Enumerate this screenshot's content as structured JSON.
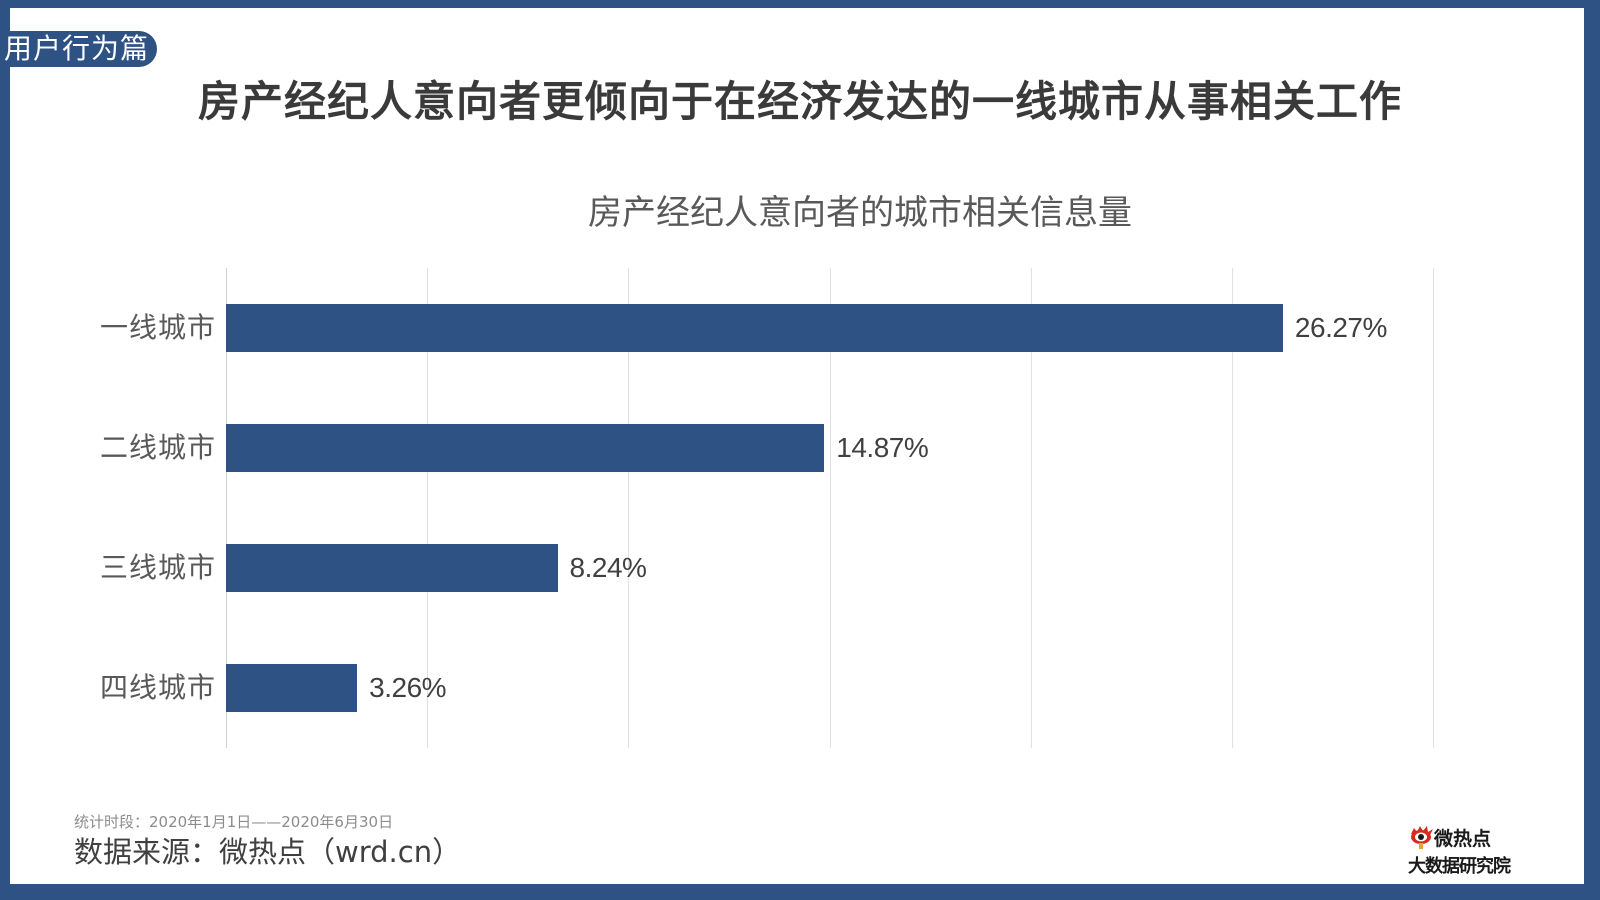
{
  "header": {
    "section_tag": "用户行为篇",
    "headline": "房产经纪人意向者更倾向于在经济发达的一线城市从事相关工作"
  },
  "chart_data": {
    "type": "bar",
    "orientation": "horizontal",
    "title": "房产经纪人意向者的城市相关信息量",
    "categories": [
      "一线城市",
      "二线城市",
      "三线城市",
      "四线城市"
    ],
    "values": [
      26.27,
      14.87,
      8.24,
      3.26
    ],
    "value_labels": [
      "26.27%",
      "14.87%",
      "8.24%",
      "3.26%"
    ],
    "unit": "%",
    "xlabel": "",
    "ylabel": "",
    "xlim": [
      0,
      30
    ],
    "gridlines": [
      0,
      5,
      10,
      15,
      20,
      25,
      30
    ],
    "grid": true,
    "axis_tick_labels_visible": false,
    "legend": null,
    "bar_color": "#2d5283"
  },
  "footer": {
    "period": "统计时段：2020年1月1日——2020年6月30日",
    "source": "数据来源：微热点（wrd.cn）",
    "logo_top": "微热点",
    "logo_bottom": "大数据研究院"
  },
  "colors": {
    "frame": "#2d5283",
    "bar": "#2d5283",
    "logo_red": "#d42a20"
  }
}
